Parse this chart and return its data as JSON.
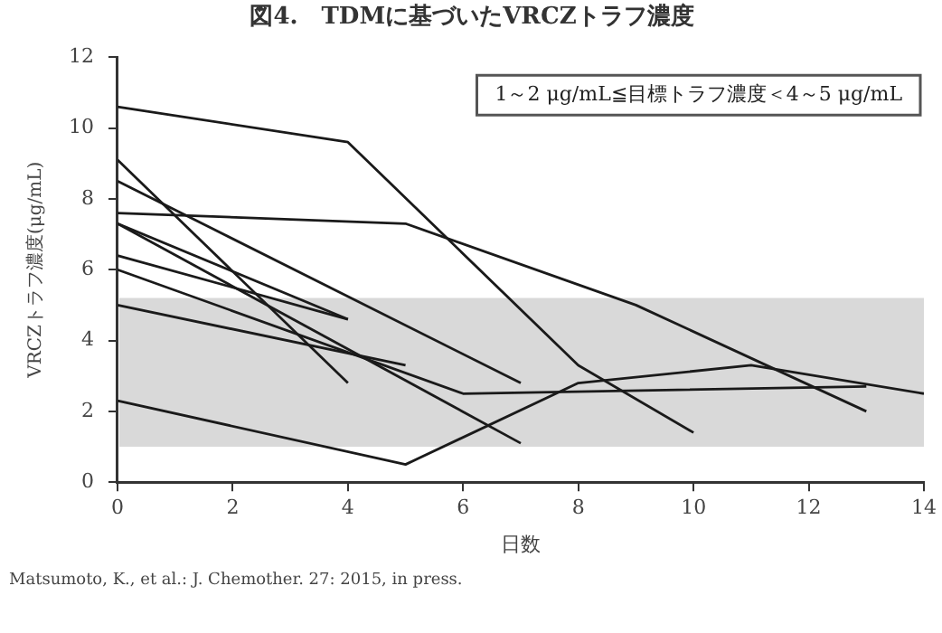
{
  "chart_data": {
    "type": "line",
    "title": "図4.　TDMに基づいたVRCZトラフ濃度",
    "xlabel": "日数",
    "ylabel": "VRCZトラフ濃度(μg/mL)",
    "xlim": [
      0,
      14
    ],
    "xticks": [
      0,
      2,
      4,
      6,
      8,
      10,
      12,
      14
    ],
    "ylim": [
      0,
      12
    ],
    "yticks": [
      0,
      2,
      4,
      6,
      8,
      10,
      12
    ],
    "grid": false,
    "legend": false,
    "marker": "none",
    "line_style": "solid",
    "bands": [
      {
        "axis": "y",
        "from": 1,
        "to": 5.2,
        "color": "#d9d9d9"
      }
    ],
    "annotations": [
      "1～2 μg/mL≦目標トラフ濃度＜4～5 μg/mL",
      "Matsumoto, K., et al.: J. Chemother. 27: 2015, in press."
    ],
    "series": [
      {
        "color": "#1a1a1a",
        "x": [
          0,
          4,
          8,
          10
        ],
        "values": [
          10.6,
          9.6,
          3.3,
          1.4
        ]
      },
      {
        "color": "#1a1a1a",
        "x": [
          0,
          4
        ],
        "values": [
          9.1,
          2.8
        ]
      },
      {
        "color": "#1a1a1a",
        "x": [
          0,
          7
        ],
        "values": [
          8.5,
          2.8
        ]
      },
      {
        "color": "#1a1a1a",
        "x": [
          0,
          5,
          9,
          13
        ],
        "values": [
          7.6,
          7.3,
          5.0,
          2.0
        ]
      },
      {
        "color": "#1a1a1a",
        "x": [
          0,
          4
        ],
        "values": [
          7.3,
          4.6
        ]
      },
      {
        "color": "#1a1a1a",
        "x": [
          0,
          7
        ],
        "values": [
          7.3,
          1.1
        ]
      },
      {
        "color": "#1a1a1a",
        "x": [
          0,
          4
        ],
        "values": [
          6.4,
          4.6
        ]
      },
      {
        "color": "#1a1a1a",
        "x": [
          0,
          6,
          13
        ],
        "values": [
          6.0,
          2.5,
          2.7
        ]
      },
      {
        "color": "#1a1a1a",
        "x": [
          0,
          5
        ],
        "values": [
          5.0,
          3.3
        ]
      },
      {
        "color": "#1a1a1a",
        "x": [
          0,
          5,
          8,
          11,
          14
        ],
        "values": [
          2.3,
          0.5,
          2.8,
          3.3,
          2.5
        ]
      }
    ]
  }
}
